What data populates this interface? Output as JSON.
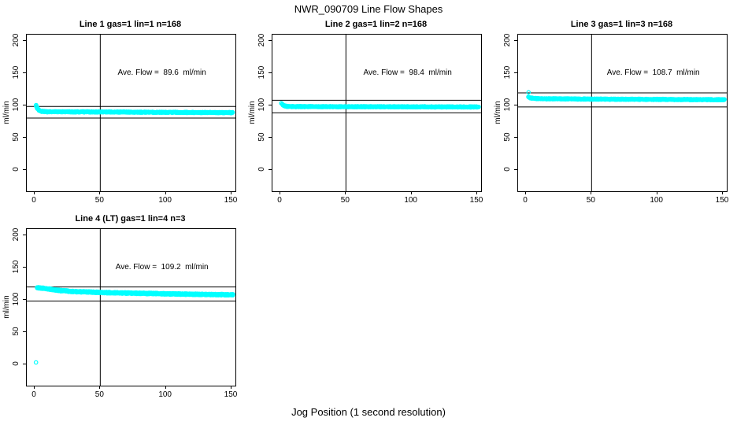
{
  "figure": {
    "title": "NWR_090709  Line Flow Shapes",
    "xlabel": "Jog Position (1 second resolution)",
    "background": "#ffffff"
  },
  "chart_data": {
    "type": "scatter",
    "title": "NWR_090709  Line Flow Shapes",
    "xlabel": "Jog Position (1 second resolution)",
    "ylabel": "ml/min",
    "point_color": "#00ffff",
    "axis_color": "#000000",
    "xlim": [
      -6,
      153
    ],
    "ylim": [
      -33,
      210
    ],
    "xticks": [
      0,
      50,
      100,
      150
    ],
    "yticks": [
      0,
      50,
      100,
      150,
      200
    ],
    "vline_x": 50,
    "grid": false,
    "legend": "none",
    "panels": [
      {
        "title": "Line 1 gas=1 lin=1 n=168",
        "ave_flow": 89.6,
        "ave_flow_label": "Ave. Flow =  89.6  ml/min",
        "ref_lines": [
          98.6,
          80.6
        ],
        "profile": [
          [
            1,
            100
          ],
          [
            2,
            96
          ],
          [
            3,
            93
          ],
          [
            5,
            91
          ],
          [
            10,
            90.3
          ],
          [
            50,
            90
          ],
          [
            100,
            89.5
          ],
          [
            151,
            89
          ]
        ],
        "spread": 1.2,
        "outliers": []
      },
      {
        "title": "Line 2 gas=1 lin=2 n=168",
        "ave_flow": 98.4,
        "ave_flow_label": "Ave. Flow =  98.4  ml/min",
        "ref_lines": [
          108.2,
          88.6
        ],
        "profile": [
          [
            1,
            103.5
          ],
          [
            2,
            101
          ],
          [
            3,
            99.5
          ],
          [
            5,
            98.8
          ],
          [
            10,
            98.4
          ],
          [
            50,
            98.2
          ],
          [
            100,
            98
          ],
          [
            151,
            97.8
          ]
        ],
        "spread": 1.2,
        "outliers": []
      },
      {
        "title": "Line 3 gas=1 lin=3 n=168",
        "ave_flow": 108.7,
        "ave_flow_label": "Ave. Flow =  108.7  ml/min",
        "ref_lines": [
          119.6,
          97.8
        ],
        "profile": [
          [
            2,
            113.5
          ],
          [
            3,
            112
          ],
          [
            6,
            111
          ],
          [
            15,
            110.5
          ],
          [
            50,
            110
          ],
          [
            100,
            109.5
          ],
          [
            151,
            109
          ]
        ],
        "spread": 1.2,
        "outliers": [
          [
            2,
            120.5
          ]
        ]
      },
      {
        "title": "Line 4 (LT) gas=1 lin=4 n=3",
        "ave_flow": 109.2,
        "ave_flow_label": "Ave. Flow =  109.2  ml/min",
        "ref_lines": [
          120.1,
          98.3
        ],
        "profile": [
          [
            2,
            119
          ],
          [
            6,
            118.3
          ],
          [
            12,
            116.5
          ],
          [
            20,
            114.5
          ],
          [
            30,
            113
          ],
          [
            45,
            112
          ],
          [
            60,
            111
          ],
          [
            80,
            110.3
          ],
          [
            100,
            109.5
          ],
          [
            120,
            108.8
          ],
          [
            151,
            108
          ]
        ],
        "spread": 2.4,
        "outliers": [
          [
            1,
            3
          ]
        ]
      }
    ]
  }
}
